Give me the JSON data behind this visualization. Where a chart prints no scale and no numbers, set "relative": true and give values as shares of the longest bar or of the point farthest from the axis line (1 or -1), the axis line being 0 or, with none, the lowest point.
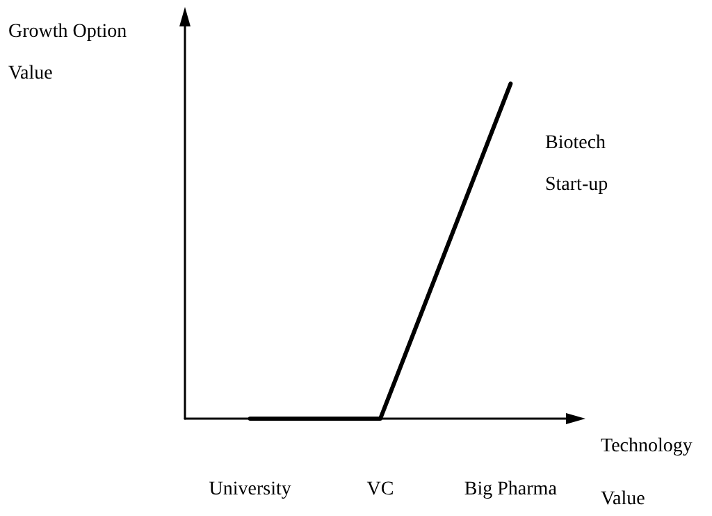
{
  "chart_data": {
    "type": "line",
    "relative": true,
    "xlabel": "Technology Value",
    "ylabel": "Growth Option Value",
    "categories": [
      "University",
      "VC",
      "Big Pharma"
    ],
    "series": [
      {
        "color": "#000000",
        "values": [
          0,
          0,
          1
        ]
      }
    ],
    "annotations": [
      "Biotech Start-up"
    ],
    "marker": "none",
    "line_style": "solid",
    "grid": false
  }
}
